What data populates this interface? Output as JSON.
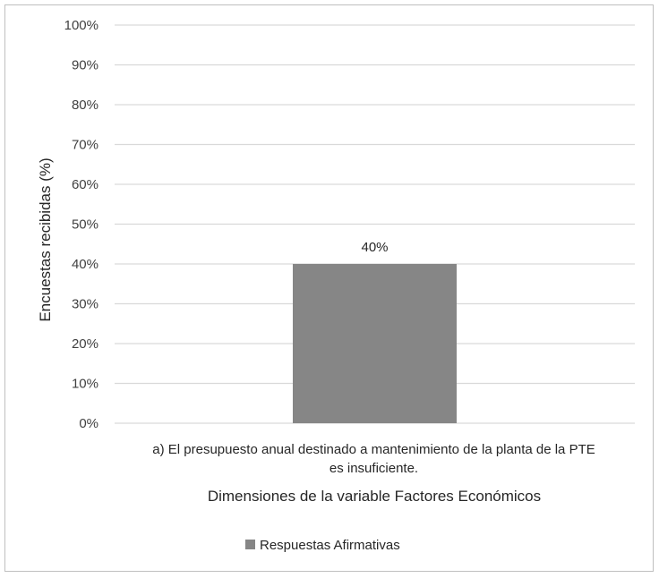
{
  "chart_data": {
    "type": "bar",
    "categories": [
      [
        "a) El presupuesto anual destinado a mantenimiento de la planta de la PTE",
        "es insuficiente."
      ]
    ],
    "series": [
      {
        "name": "Respuestas Afirmativas",
        "values": [
          40
        ],
        "color": "#868686"
      }
    ],
    "data_labels": [
      "40%"
    ],
    "xlabel": "Dimensiones de la variable Factores Económicos",
    "ylabel": "Encuestas recibidas (%)",
    "ylim": [
      0,
      100
    ],
    "yticks": [
      "0%",
      "10%",
      "20%",
      "30%",
      "40%",
      "50%",
      "60%",
      "70%",
      "80%",
      "90%",
      "100%"
    ],
    "grid": true,
    "legend": "bottom-center",
    "gridline_color": "#d9d9d9"
  }
}
